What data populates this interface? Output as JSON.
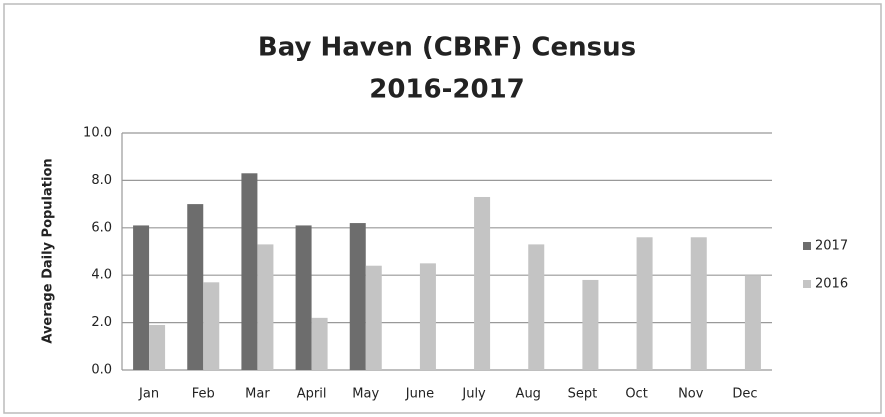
{
  "chart_data": {
    "type": "bar",
    "title": [
      "Bay Haven (CBRF) Census",
      "2016-2017"
    ],
    "y_label": "Average Daily Population",
    "categories": [
      "Jan",
      "Feb",
      "Mar",
      "April",
      "May",
      "June",
      "July",
      "Aug",
      "Sept",
      "Oct",
      "Nov",
      "Dec"
    ],
    "series": [
      {
        "name": "2017",
        "color": "#6d6d6d",
        "values": [
          6.1,
          7.0,
          8.3,
          6.1,
          6.2,
          null,
          null,
          null,
          null,
          null,
          null,
          null
        ]
      },
      {
        "name": "2016",
        "color": "#c4c4c4",
        "values": [
          1.9,
          3.7,
          5.3,
          2.2,
          4.4,
          4.5,
          7.3,
          5.3,
          3.8,
          5.6,
          5.6,
          4.0
        ]
      }
    ],
    "ylim": [
      0,
      10
    ],
    "yticks": [
      {
        "value": 0,
        "label": "0.0"
      },
      {
        "value": 2,
        "label": "2.0"
      },
      {
        "value": 4,
        "label": "4.0"
      },
      {
        "value": 6,
        "label": "6.0"
      },
      {
        "value": 8,
        "label": "8.0"
      },
      {
        "value": 10,
        "label": "10.0"
      }
    ],
    "grid": true,
    "legend": "right"
  }
}
